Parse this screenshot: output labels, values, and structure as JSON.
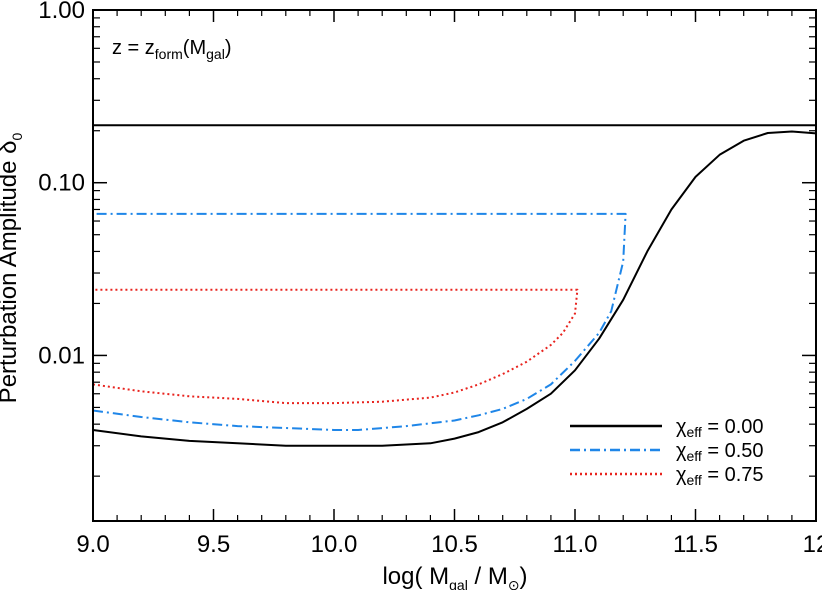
{
  "chart_data": {
    "type": "line",
    "annotation": {
      "lhs": "z = z",
      "lhs_sub": "form",
      "rhs": "(M",
      "rhs_sub": "gal",
      "close": ")"
    },
    "xlabel": {
      "prefix": "log( M",
      "sub1": "gal",
      "mid": " / M",
      "sub2": "⊙",
      "suffix": ")"
    },
    "ylabel": {
      "text": "Perturbation Amplitude δ",
      "sub": "0"
    },
    "xlim": [
      9.0,
      12.0
    ],
    "ylim": [
      0.0011,
      1.0
    ],
    "yscale": "log",
    "x_ticks": [
      9.0,
      9.5,
      10.0,
      10.5,
      11.0,
      11.5,
      12.0
    ],
    "x_tick_labels": [
      "9.0",
      "9.5",
      "10.0",
      "10.5",
      "11.0",
      "11.5",
      "12"
    ],
    "y_ticks": [
      0.01,
      0.1,
      1.0
    ],
    "y_tick_labels": [
      "0.01",
      "0.10",
      "1.00"
    ],
    "reference_line": {
      "y": 0.215,
      "color": "#000000"
    },
    "series": [
      {
        "name": "χ",
        "name_sub": "eff",
        "name_value": " = 0.00",
        "color": "#000000",
        "style": "solid",
        "points": [
          [
            9.0,
            0.0037
          ],
          [
            9.2,
            0.0034
          ],
          [
            9.4,
            0.0032
          ],
          [
            9.6,
            0.0031
          ],
          [
            9.8,
            0.003
          ],
          [
            10.0,
            0.003
          ],
          [
            10.2,
            0.003
          ],
          [
            10.4,
            0.0031
          ],
          [
            10.5,
            0.0033
          ],
          [
            10.6,
            0.0036
          ],
          [
            10.7,
            0.0041
          ],
          [
            10.8,
            0.0049
          ],
          [
            10.9,
            0.006
          ],
          [
            11.0,
            0.0082
          ],
          [
            11.1,
            0.0125
          ],
          [
            11.2,
            0.021
          ],
          [
            11.3,
            0.04
          ],
          [
            11.4,
            0.07
          ],
          [
            11.5,
            0.108
          ],
          [
            11.6,
            0.145
          ],
          [
            11.7,
            0.175
          ],
          [
            11.8,
            0.194
          ],
          [
            11.9,
            0.198
          ],
          [
            12.0,
            0.193
          ]
        ]
      },
      {
        "name": "χ",
        "name_sub": "eff",
        "name_value": " = 0.50",
        "color": "#1f86e8",
        "style": "dashdot",
        "points": [
          [
            9.0,
            0.0048
          ],
          [
            9.2,
            0.0044
          ],
          [
            9.4,
            0.0041
          ],
          [
            9.6,
            0.0039
          ],
          [
            9.8,
            0.0038
          ],
          [
            10.0,
            0.0037
          ],
          [
            10.1,
            0.0037
          ],
          [
            10.3,
            0.0039
          ],
          [
            10.5,
            0.0042
          ],
          [
            10.6,
            0.0045
          ],
          [
            10.7,
            0.0049
          ],
          [
            10.8,
            0.0056
          ],
          [
            10.9,
            0.0068
          ],
          [
            11.0,
            0.0093
          ],
          [
            11.1,
            0.0135
          ],
          [
            11.15,
            0.018
          ],
          [
            11.2,
            0.035
          ],
          [
            11.21,
            0.066
          ],
          [
            9.0,
            0.066
          ]
        ]
      },
      {
        "name": "χ",
        "name_sub": "eff",
        "name_value": " = 0.75",
        "color": "#e8231e",
        "style": "dotted",
        "points": [
          [
            9.0,
            0.0068
          ],
          [
            9.2,
            0.0062
          ],
          [
            9.4,
            0.0058
          ],
          [
            9.6,
            0.0056
          ],
          [
            9.8,
            0.0053
          ],
          [
            10.0,
            0.0053
          ],
          [
            10.2,
            0.0054
          ],
          [
            10.4,
            0.0057
          ],
          [
            10.5,
            0.0061
          ],
          [
            10.6,
            0.0068
          ],
          [
            10.7,
            0.0078
          ],
          [
            10.8,
            0.0092
          ],
          [
            10.9,
            0.0115
          ],
          [
            10.95,
            0.0135
          ],
          [
            11.0,
            0.0175
          ],
          [
            11.01,
            0.024
          ],
          [
            9.0,
            0.024
          ]
        ]
      }
    ],
    "legend": {
      "position": "bottom-right"
    }
  }
}
